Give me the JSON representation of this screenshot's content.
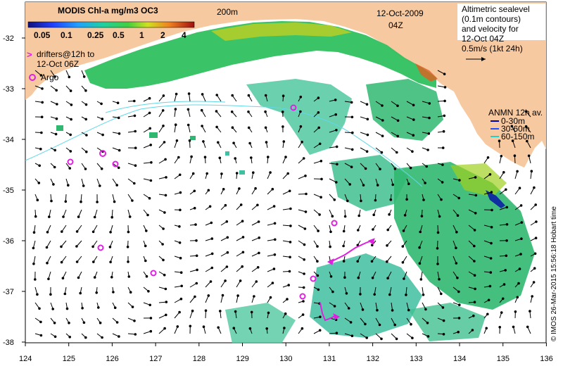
{
  "colorbar": {
    "title": "MODIS Chl-a mg/m3 OC3",
    "ticks": [
      "0.05",
      "0.1",
      "0.25",
      "0.5",
      "1",
      "2",
      "4"
    ]
  },
  "contour_label": "200m",
  "date": "12-Oct-2009",
  "time": "04Z",
  "altimetry": {
    "lines": [
      "Altimetric sealevel",
      "(0.1m contours)",
      "and velocity for",
      "12-Oct 04Z",
      "0.5m/s (1kt 24h)"
    ]
  },
  "drifters": {
    "lines": [
      "drifters@12h to",
      "12-Oct 06Z"
    ]
  },
  "argo_label": "Argo",
  "anmn": {
    "title": "ANMN 12h av.",
    "items": [
      {
        "label": "0-30m",
        "color": "#0000aa"
      },
      {
        "label": "30-60m",
        "color": "#2050ff"
      },
      {
        "label": "60-150m",
        "color": "#20d0d0"
      }
    ]
  },
  "x_ticks": [
    "124",
    "125",
    "126",
    "127",
    "128",
    "129",
    "130",
    "131",
    "132",
    "133",
    "134",
    "135",
    "136"
  ],
  "y_ticks": [
    "-32",
    "-33",
    "-34",
    "-35",
    "-36",
    "-37",
    "-38"
  ],
  "credit": "© IMOS 26-Mar-2015 15:56:18 Hobart time",
  "colors": {
    "land": "#f7c9a0",
    "sea": "#ffffff",
    "argo": "#e020e0",
    "contour": "#60d8e8",
    "chl_low": "#40c8a8",
    "chl_mid": "#30c060",
    "chl_high": "#a0d020"
  }
}
